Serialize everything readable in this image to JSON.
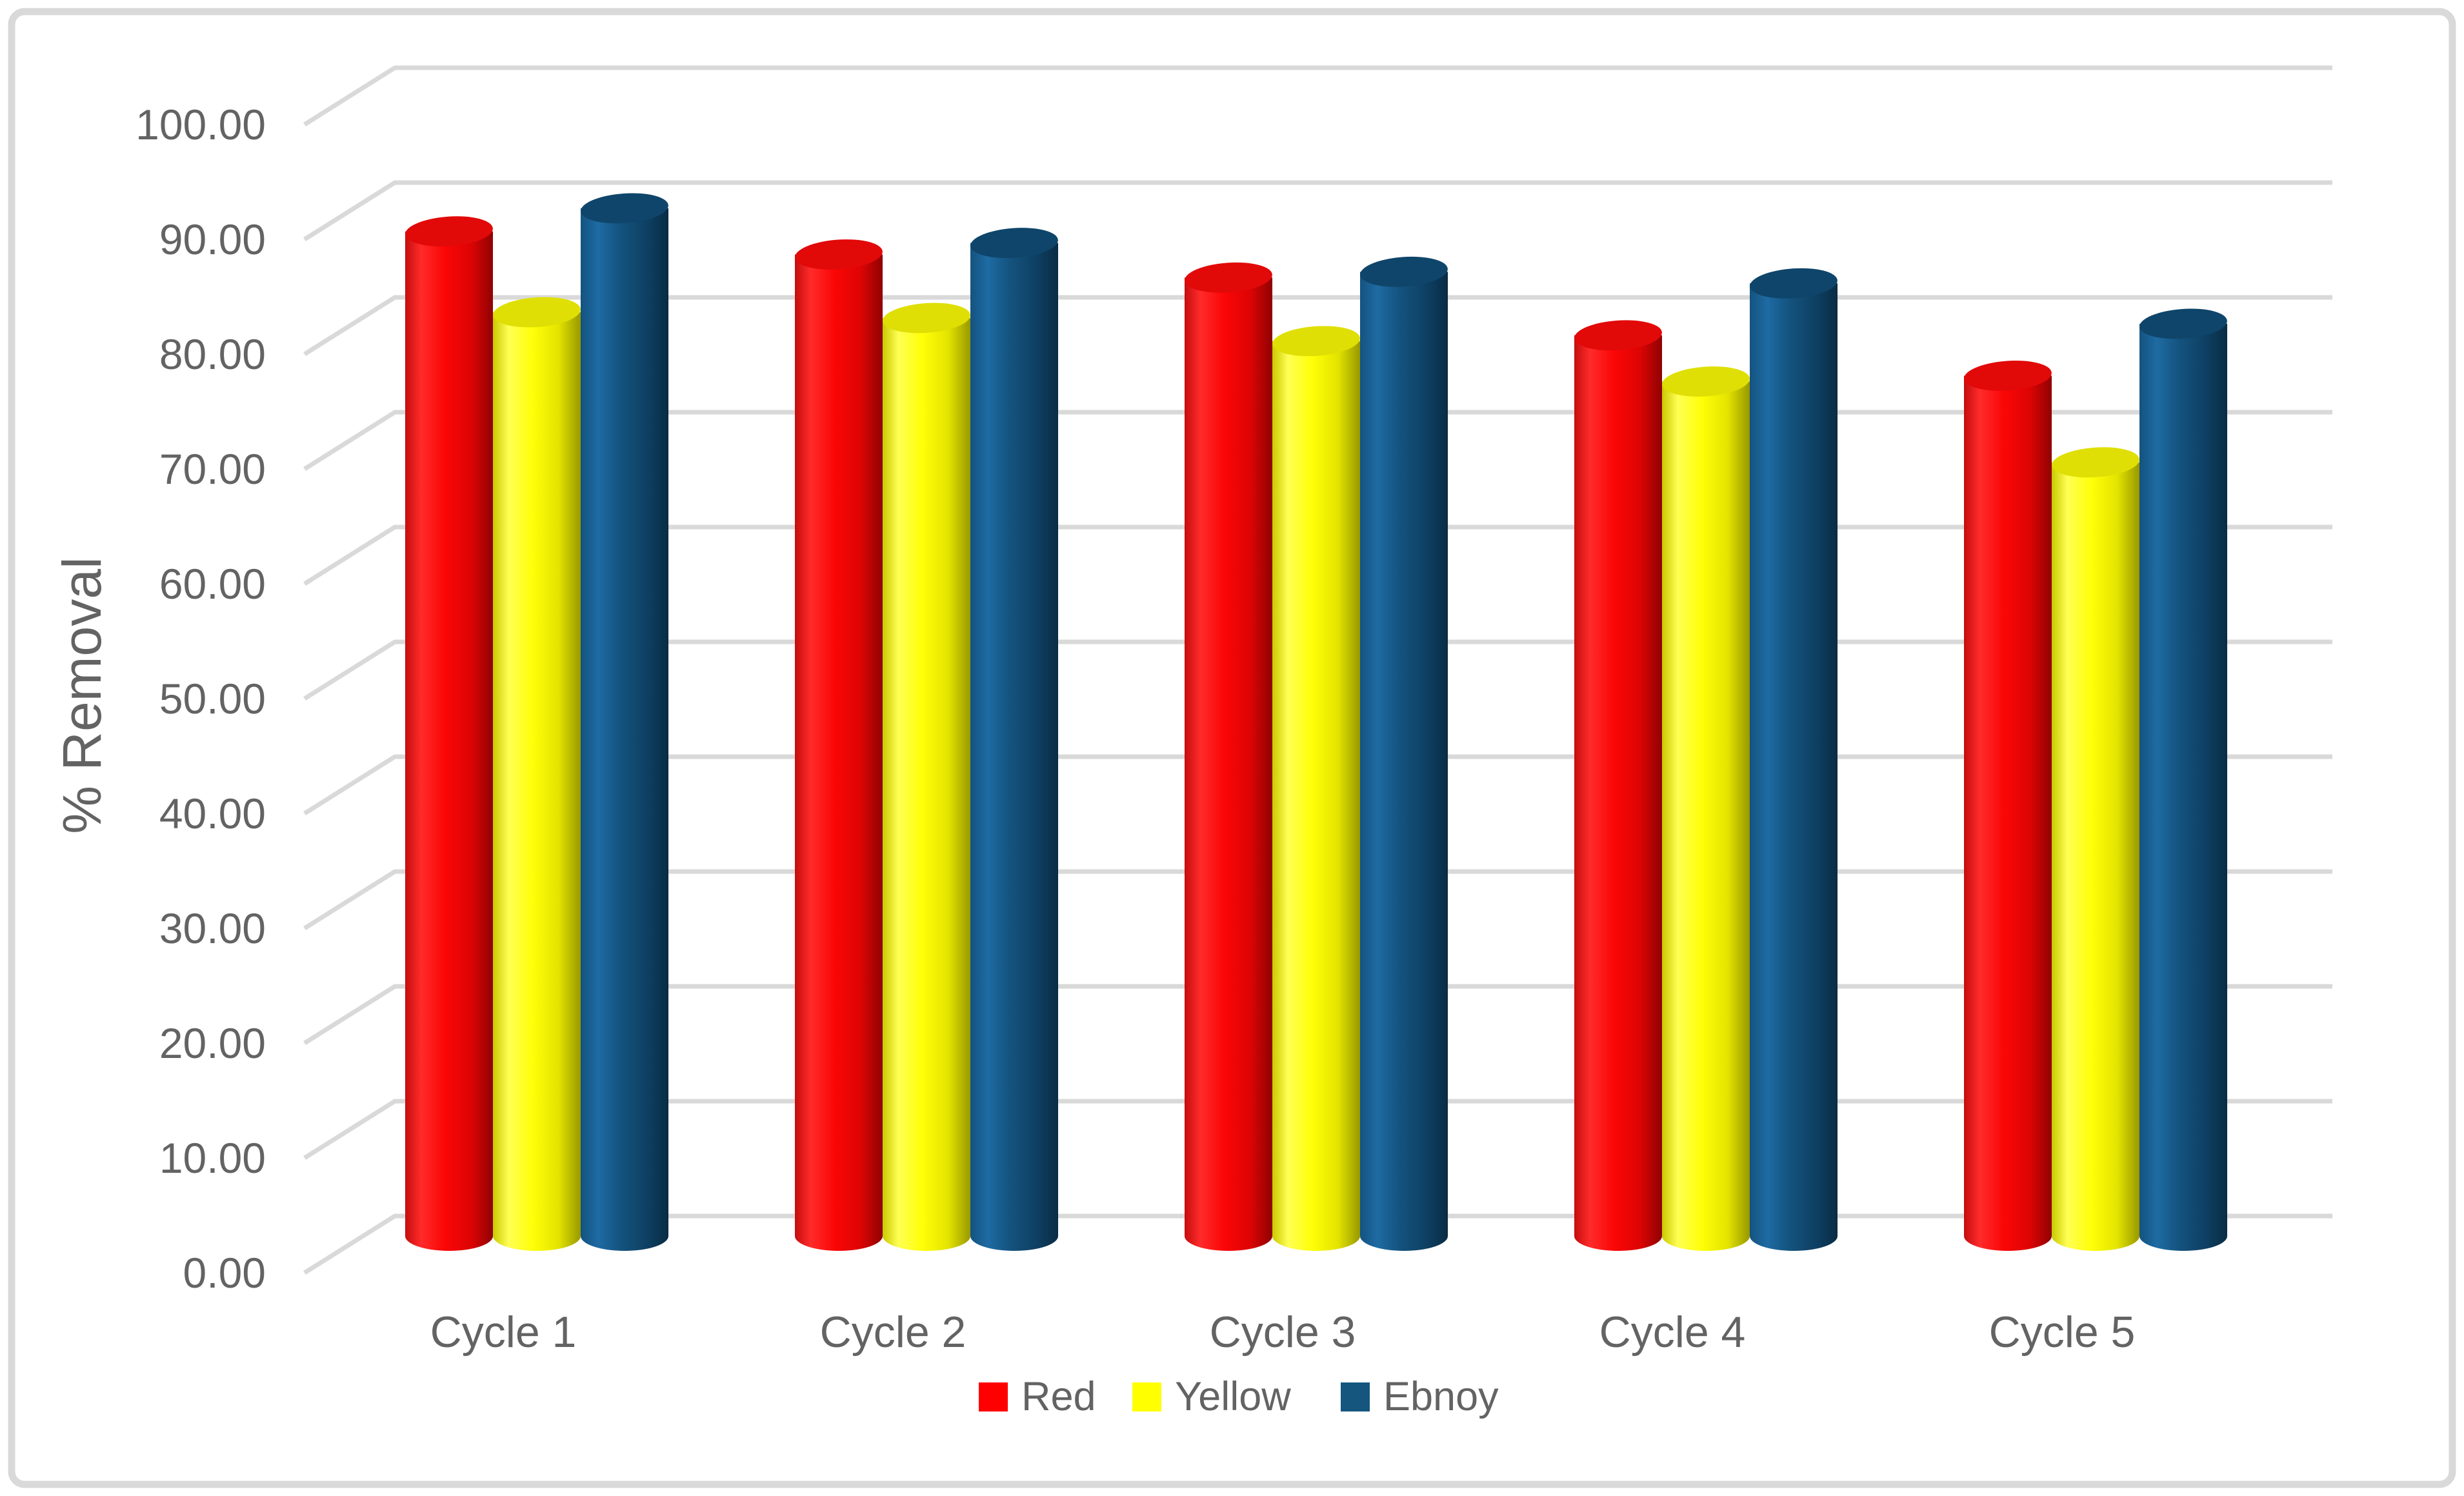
{
  "chart_data": {
    "type": "bar",
    "subtype": "3d-cylinder",
    "title": "",
    "xlabel": "",
    "ylabel": "% Removal",
    "ylim": [
      0,
      100
    ],
    "ytick_step": 10,
    "grid": true,
    "legend_position": "bottom",
    "categories": [
      "Cycle 1",
      "Cycle 2",
      "Cycle 3",
      "Cycle 4",
      "Cycle 5"
    ],
    "series": [
      {
        "name": "Red",
        "color": "#FF0000",
        "values": [
          87.0,
          85.0,
          83.0,
          78.0,
          74.5
        ]
      },
      {
        "name": "Yellow",
        "color": "#FFFF00",
        "values": [
          80.0,
          79.5,
          77.5,
          74.0,
          67.0
        ]
      },
      {
        "name": "Ebnoy",
        "color": "#14567E",
        "values": [
          89.0,
          86.0,
          83.5,
          82.5,
          79.0
        ]
      }
    ]
  },
  "y_axis": {
    "title": "% Removal",
    "tick_labels": [
      "0.00",
      "10.00",
      "20.00",
      "30.00",
      "40.00",
      "50.00",
      "60.00",
      "70.00",
      "80.00",
      "90.00",
      "100.00"
    ],
    "label_color": "#636363",
    "gridline_color": "#d9d9d9"
  },
  "x_axis": {
    "categories": [
      "Cycle 1",
      "Cycle 2",
      "Cycle 3",
      "Cycle 4",
      "Cycle 5"
    ],
    "label_color": "#636363"
  },
  "legend": {
    "items": [
      {
        "label": "Red",
        "color": "#ff0000"
      },
      {
        "label": "Yellow",
        "color": "#ffff00"
      },
      {
        "label": "Ebnoy",
        "color": "#14567e"
      }
    ],
    "text_color": "#636363"
  },
  "frame": {
    "border_color": "#d9d9d9",
    "background": "#ffffff"
  }
}
